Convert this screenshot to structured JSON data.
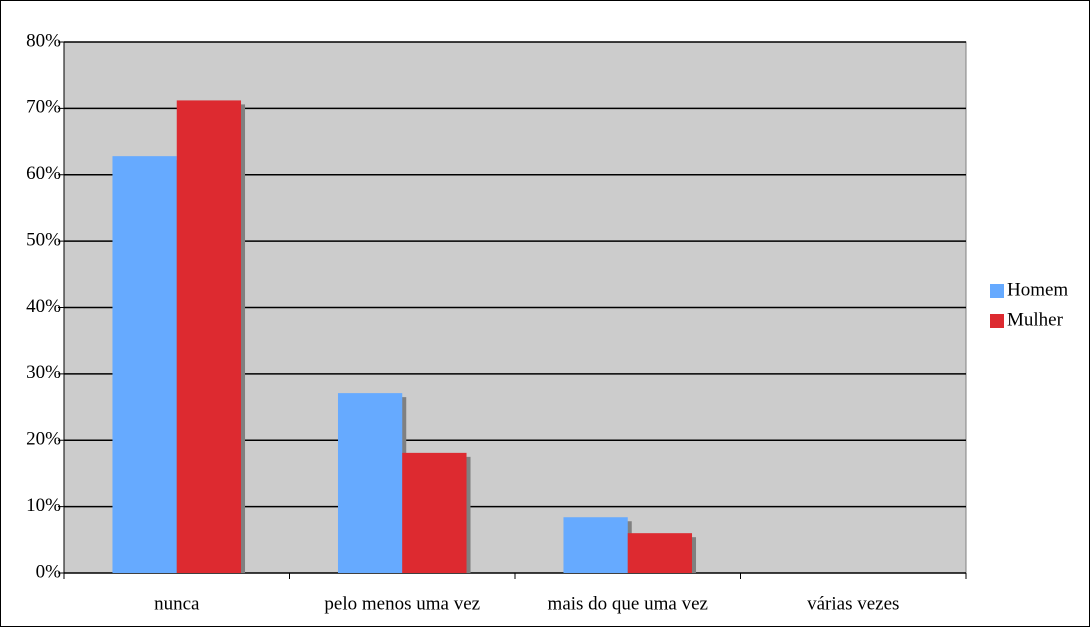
{
  "chart_data": {
    "type": "bar",
    "categories": [
      "nunca",
      "pelo menos uma vez",
      "mais do que uma vez",
      "várias vezes"
    ],
    "series": [
      {
        "name": "Homem",
        "color": "#66aaff",
        "values": [
          62.8,
          27.1,
          8.4,
          0
        ]
      },
      {
        "name": "Mulher",
        "color": "#dd2a30",
        "values": [
          71.2,
          18.1,
          6.0,
          0
        ]
      }
    ],
    "ylim": [
      0,
      80
    ],
    "yticks": [
      {
        "value": 0,
        "label": "0%"
      },
      {
        "value": 10,
        "label": "10%"
      },
      {
        "value": 20,
        "label": "20%"
      },
      {
        "value": 30,
        "label": "30%"
      },
      {
        "value": 40,
        "label": "40%"
      },
      {
        "value": 50,
        "label": "50%"
      },
      {
        "value": 60,
        "label": "60%"
      },
      {
        "value": 70,
        "label": "70%"
      },
      {
        "value": 80,
        "label": "80%"
      }
    ],
    "grid": true,
    "legend": "right",
    "plot_background": "#cccccc"
  }
}
